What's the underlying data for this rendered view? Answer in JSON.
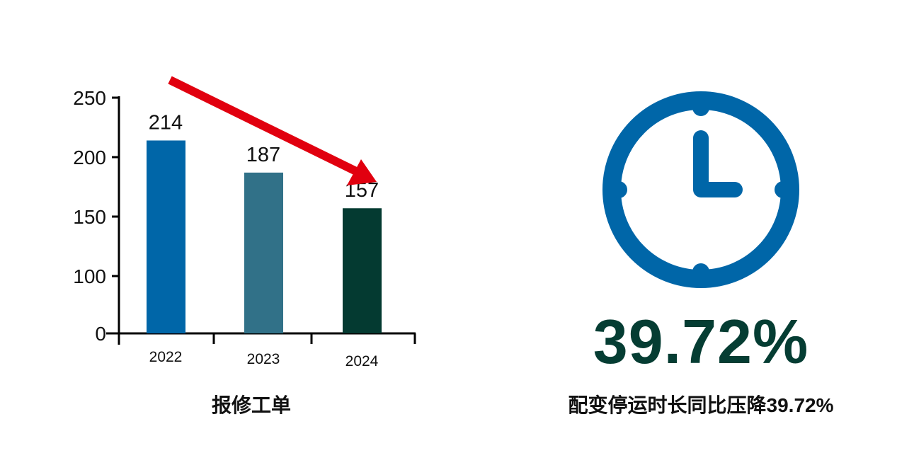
{
  "chart_data": {
    "type": "bar",
    "title": "报修工单",
    "categories": [
      "2022",
      "2023",
      "2024"
    ],
    "values": [
      214,
      187,
      157
    ],
    "data_labels": [
      "214",
      "187",
      "157"
    ],
    "yticks": [
      "0",
      "100",
      "150",
      "200",
      "250"
    ],
    "ylim": [
      0,
      250
    ],
    "grid": false,
    "bar_colors": [
      "#0066a8",
      "#317188",
      "#043a31"
    ],
    "annotation": {
      "type": "arrow",
      "direction": "down",
      "color": "#e1000f"
    }
  },
  "kpi": {
    "icon": "clock-icon",
    "icon_color": "#0066a8",
    "value": "39.72%",
    "value_color": "#053d33",
    "caption": "配变停运时长同比压降39.72%"
  }
}
